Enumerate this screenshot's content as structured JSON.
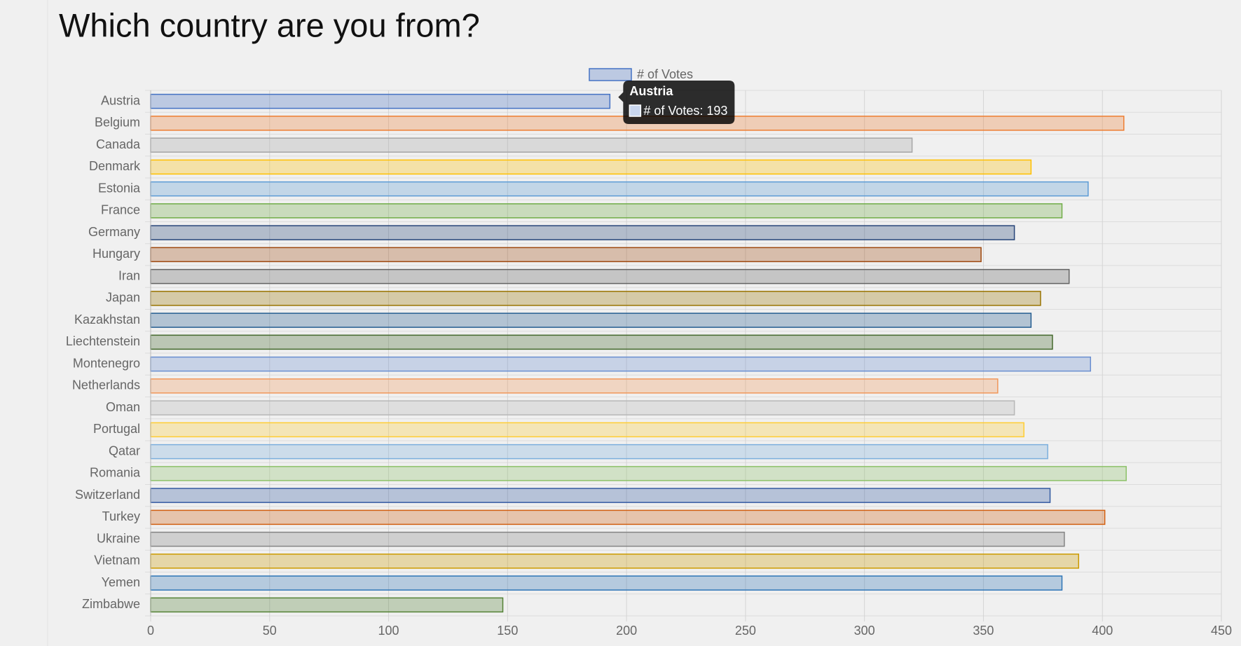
{
  "chart_data": {
    "type": "bar",
    "orientation": "horizontal",
    "title": "Which country are you from?",
    "categories": [
      "Austria",
      "Belgium",
      "Canada",
      "Denmark",
      "Estonia",
      "France",
      "Germany",
      "Hungary",
      "Iran",
      "Japan",
      "Kazakhstan",
      "Liechtenstein",
      "Montenegro",
      "Netherlands",
      "Oman",
      "Portugal",
      "Qatar",
      "Romania",
      "Switzerland",
      "Turkey",
      "Ukraine",
      "Vietnam",
      "Yemen",
      "Zimbabwe"
    ],
    "series": [
      {
        "name": "# of Votes",
        "values": [
          193,
          409,
          320,
          370,
          394,
          383,
          363,
          349,
          386,
          374,
          370,
          379,
          395,
          356,
          363,
          367,
          377,
          410,
          378,
          401,
          384,
          390,
          383,
          148
        ],
        "colors": [
          "#4472c4",
          "#ed7d31",
          "#a5a5a5",
          "#ffc000",
          "#5b9bd5",
          "#70ad47",
          "#264478",
          "#9e480e",
          "#636363",
          "#997300",
          "#255e91",
          "#43682b",
          "#698ed0",
          "#f1975a",
          "#b7b7b7",
          "#ffcd33",
          "#7cafdd",
          "#8cc168",
          "#335aa1",
          "#d26012",
          "#848484",
          "#cc9a00",
          "#2e75b6",
          "#548235"
        ]
      }
    ],
    "xlim": [
      0,
      450
    ],
    "xticks": [
      0,
      50,
      100,
      150,
      200,
      250,
      300,
      350,
      400,
      450
    ],
    "grid": true,
    "legend": "top",
    "tooltip": {
      "title": "Austria",
      "label": "# of Votes: 193",
      "category_index": 0
    }
  }
}
